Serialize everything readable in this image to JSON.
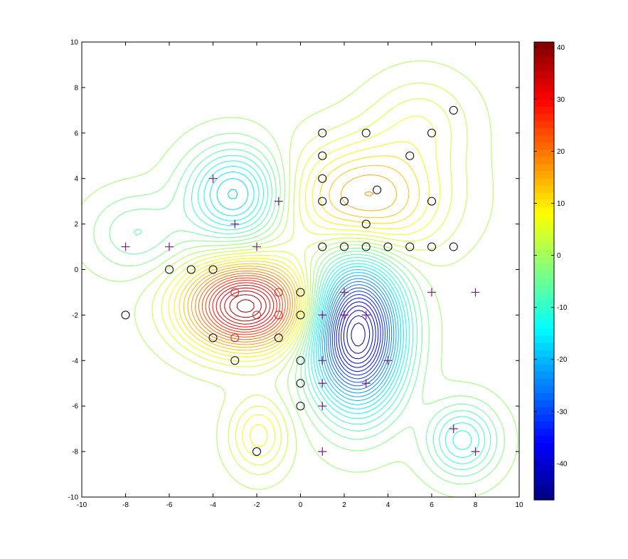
{
  "chart_data": {
    "type": "contour",
    "title": "",
    "xlabel": "",
    "ylabel": "",
    "xlim": [
      -10,
      10
    ],
    "ylim": [
      -10,
      10
    ],
    "xticks": [
      -10,
      -8,
      -6,
      -4,
      -2,
      0,
      2,
      4,
      6,
      8,
      10
    ],
    "yticks": [
      -10,
      -8,
      -6,
      -4,
      -2,
      0,
      2,
      4,
      6,
      8,
      10
    ],
    "grid": false,
    "colormap": "jet",
    "colorbar": {
      "range": [
        -47,
        41
      ],
      "ticks": [
        -40,
        -30,
        -20,
        -10,
        0,
        10,
        20,
        30,
        40
      ]
    },
    "contour_sources": [
      {
        "x": 2.6,
        "y": -2.8,
        "amp": -47,
        "sx": 1.4,
        "sy": 2.2
      },
      {
        "x": -2.5,
        "y": -1.6,
        "amp": 40,
        "sx": 1.9,
        "sy": 1.3
      },
      {
        "x": 3.0,
        "y": 3.1,
        "amp": 18,
        "sx": 2.4,
        "sy": 1.7
      },
      {
        "x": -3.0,
        "y": 3.3,
        "amp": -20,
        "sx": 1.5,
        "sy": 1.4
      },
      {
        "x": 7.4,
        "y": -7.5,
        "amp": -14,
        "sx": 1.1,
        "sy": 1.1
      },
      {
        "x": -7.5,
        "y": 1.6,
        "amp": -7,
        "sx": 1.5,
        "sy": 1.2
      },
      {
        "x": -1.9,
        "y": -7.3,
        "amp": 10,
        "sx": 0.9,
        "sy": 1.1
      },
      {
        "x": 5.5,
        "y": 6.5,
        "amp": 6,
        "sx": 1.6,
        "sy": 1.4
      }
    ],
    "series": [
      {
        "marker": "circle",
        "points": [
          [
            7,
            7
          ],
          [
            1,
            6
          ],
          [
            3,
            6
          ],
          [
            6,
            6
          ],
          [
            1,
            5
          ],
          [
            5,
            5
          ],
          [
            1,
            4
          ],
          [
            3.5,
            3.5
          ],
          [
            1,
            3
          ],
          [
            2,
            3
          ],
          [
            6,
            3
          ],
          [
            3,
            2
          ],
          [
            1,
            1
          ],
          [
            2,
            1
          ],
          [
            3,
            1
          ],
          [
            4,
            1
          ],
          [
            5,
            1
          ],
          [
            6,
            1
          ],
          [
            7,
            1
          ],
          [
            -6,
            0
          ],
          [
            -5,
            0
          ],
          [
            -4,
            0
          ],
          [
            -3,
            -1
          ],
          [
            -1,
            -1
          ],
          [
            0,
            -1
          ],
          [
            -8,
            -2
          ],
          [
            -2,
            -2
          ],
          [
            -1,
            -2
          ],
          [
            0,
            -2
          ],
          [
            -4,
            -3
          ],
          [
            -3,
            -3
          ],
          [
            -1,
            -3
          ],
          [
            -3,
            -4
          ],
          [
            0,
            -4
          ],
          [
            0,
            -5
          ],
          [
            0,
            -6
          ],
          [
            -2,
            -8
          ]
        ]
      },
      {
        "marker": "plus",
        "points": [
          [
            -4,
            4
          ],
          [
            -1,
            3
          ],
          [
            -3,
            2
          ],
          [
            -8,
            1
          ],
          [
            -6,
            1
          ],
          [
            -2,
            1
          ],
          [
            2,
            -1
          ],
          [
            6,
            -1
          ],
          [
            8,
            -1
          ],
          [
            1,
            -2
          ],
          [
            2,
            -2
          ],
          [
            3,
            -2
          ],
          [
            1,
            -4
          ],
          [
            4,
            -4
          ],
          [
            1,
            -5
          ],
          [
            3,
            -5
          ],
          [
            1,
            -6
          ],
          [
            7,
            -7
          ],
          [
            1,
            -8
          ],
          [
            8,
            -8
          ]
        ]
      }
    ]
  }
}
